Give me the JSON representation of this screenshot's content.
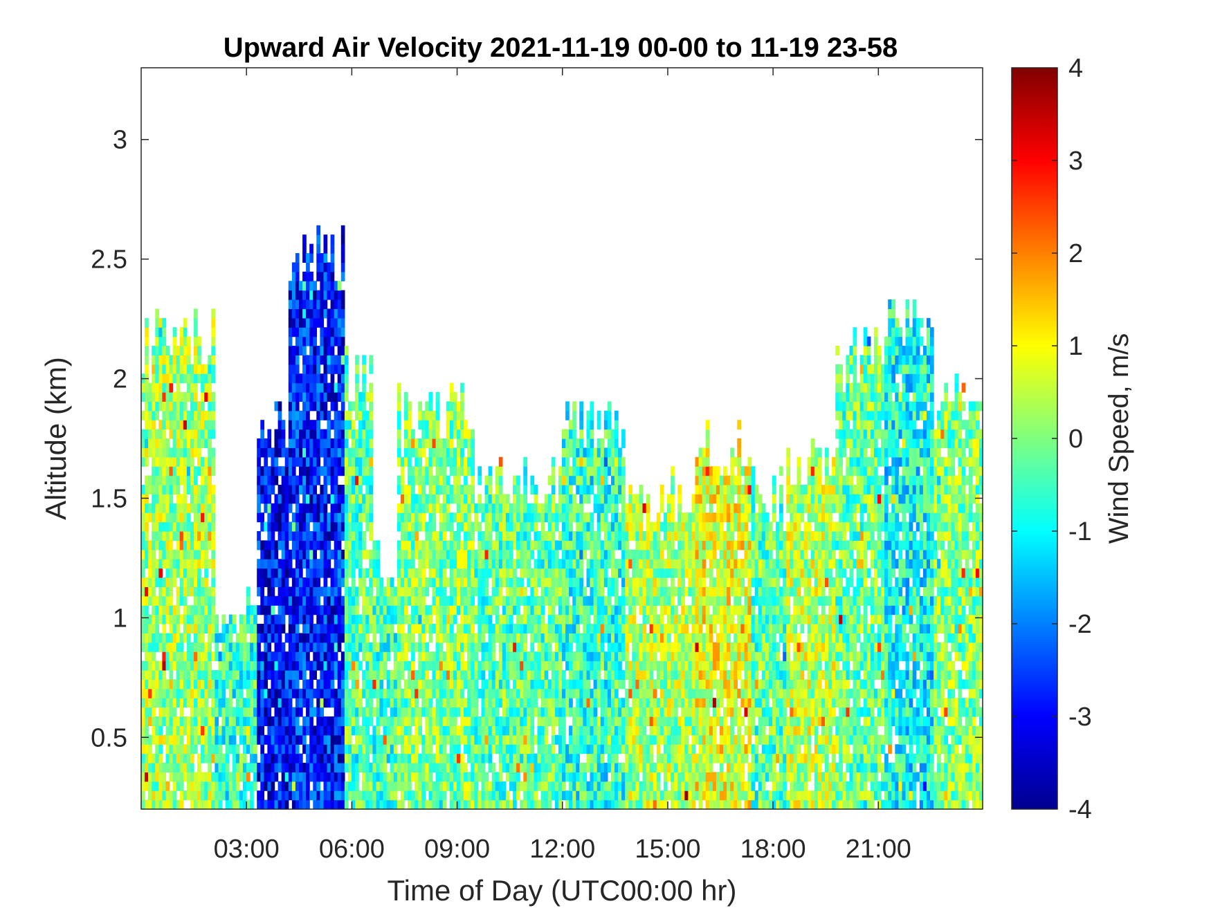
{
  "chart_data": {
    "type": "heatmap",
    "title": "Upward Air Velocity 2021-11-19 00-00 to 11-19 23-58",
    "xlabel": "Time of Day (UTC00:00 hr)",
    "ylabel": "Altitude (km)",
    "colorbar_label": "Wind Speed, m/s",
    "x_unit": "hour of day (UTC)",
    "xlim": [
      0.0,
      23.97
    ],
    "ylim": [
      0.2,
      3.3
    ],
    "x_ticks": [
      3,
      6,
      9,
      12,
      15,
      18,
      21
    ],
    "x_tick_labels": [
      "03:00",
      "06:00",
      "09:00",
      "12:00",
      "15:00",
      "18:00",
      "21:00"
    ],
    "y_ticks": [
      0.5,
      1,
      1.5,
      2,
      2.5,
      3
    ],
    "y_tick_labels": [
      "0.5",
      "1",
      "1.5",
      "2",
      "2.5",
      "3"
    ],
    "clim": [
      -4,
      4
    ],
    "colorbar_ticks": [
      -4,
      -3,
      -2,
      -1,
      0,
      1,
      2,
      3,
      4
    ],
    "colorbar_tick_labels": [
      "-4",
      "-3",
      "-2",
      "-1",
      "0",
      "1",
      "2",
      "3",
      "4"
    ],
    "colormap": "jet",
    "grid": false,
    "regions": [
      {
        "x_start": 0.0,
        "x_end": 2.1,
        "alt_top_km": 2.15,
        "mean_velocity": 0.2
      },
      {
        "x_start": 2.1,
        "x_end": 3.3,
        "alt_top_km": 1.0,
        "mean_velocity": -0.6
      },
      {
        "x_start": 3.3,
        "x_end": 4.2,
        "alt_top_km": 1.8,
        "mean_velocity": -3.0
      },
      {
        "x_start": 4.2,
        "x_end": 5.8,
        "alt_top_km": 2.5,
        "mean_velocity": -2.8
      },
      {
        "x_start": 5.8,
        "x_end": 6.6,
        "alt_top_km": 2.0,
        "mean_velocity": -0.3
      },
      {
        "x_start": 6.6,
        "x_end": 7.3,
        "alt_top_km": 1.2,
        "mean_velocity": -0.5
      },
      {
        "x_start": 7.3,
        "x_end": 9.5,
        "alt_top_km": 1.85,
        "mean_velocity": 0.0
      },
      {
        "x_start": 9.5,
        "x_end": 12.0,
        "alt_top_km": 1.55,
        "mean_velocity": -0.3
      },
      {
        "x_start": 12.0,
        "x_end": 13.8,
        "alt_top_km": 1.8,
        "mean_velocity": -0.6
      },
      {
        "x_start": 13.8,
        "x_end": 15.8,
        "alt_top_km": 1.5,
        "mean_velocity": 0.3
      },
      {
        "x_start": 15.8,
        "x_end": 17.4,
        "alt_top_km": 1.7,
        "mean_velocity": 0.8
      },
      {
        "x_start": 17.4,
        "x_end": 18.4,
        "alt_top_km": 1.5,
        "mean_velocity": -0.3
      },
      {
        "x_start": 18.4,
        "x_end": 19.8,
        "alt_top_km": 1.6,
        "mean_velocity": 0.4
      },
      {
        "x_start": 19.8,
        "x_end": 21.2,
        "alt_top_km": 2.1,
        "mean_velocity": -0.2
      },
      {
        "x_start": 21.2,
        "x_end": 22.6,
        "alt_top_km": 2.2,
        "mean_velocity": -0.9
      },
      {
        "x_start": 22.6,
        "x_end": 23.97,
        "alt_top_km": 1.9,
        "mean_velocity": 0.0
      }
    ]
  }
}
